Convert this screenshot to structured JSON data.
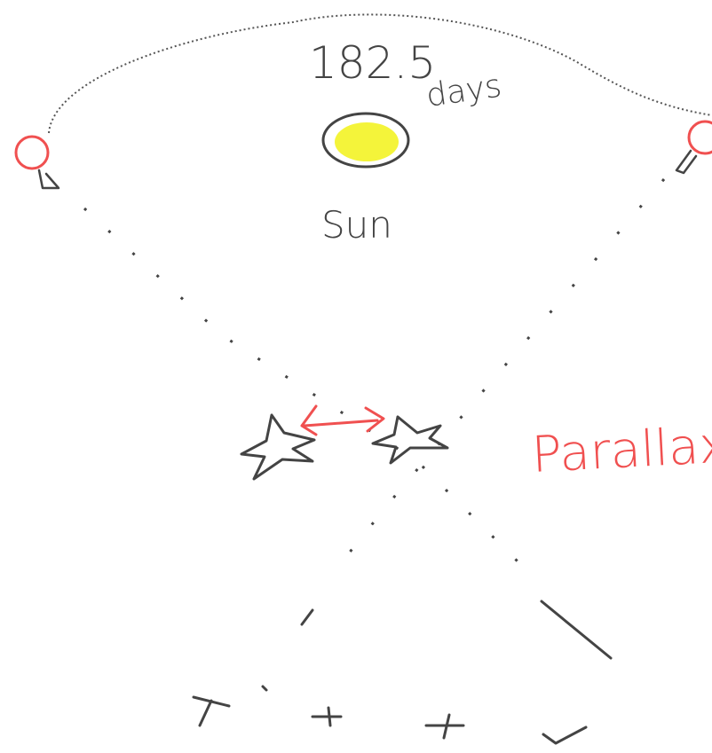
{
  "labels": {
    "time": "182.5",
    "unit": "days",
    "sun": "Sun",
    "effect": "Parallax"
  }
}
